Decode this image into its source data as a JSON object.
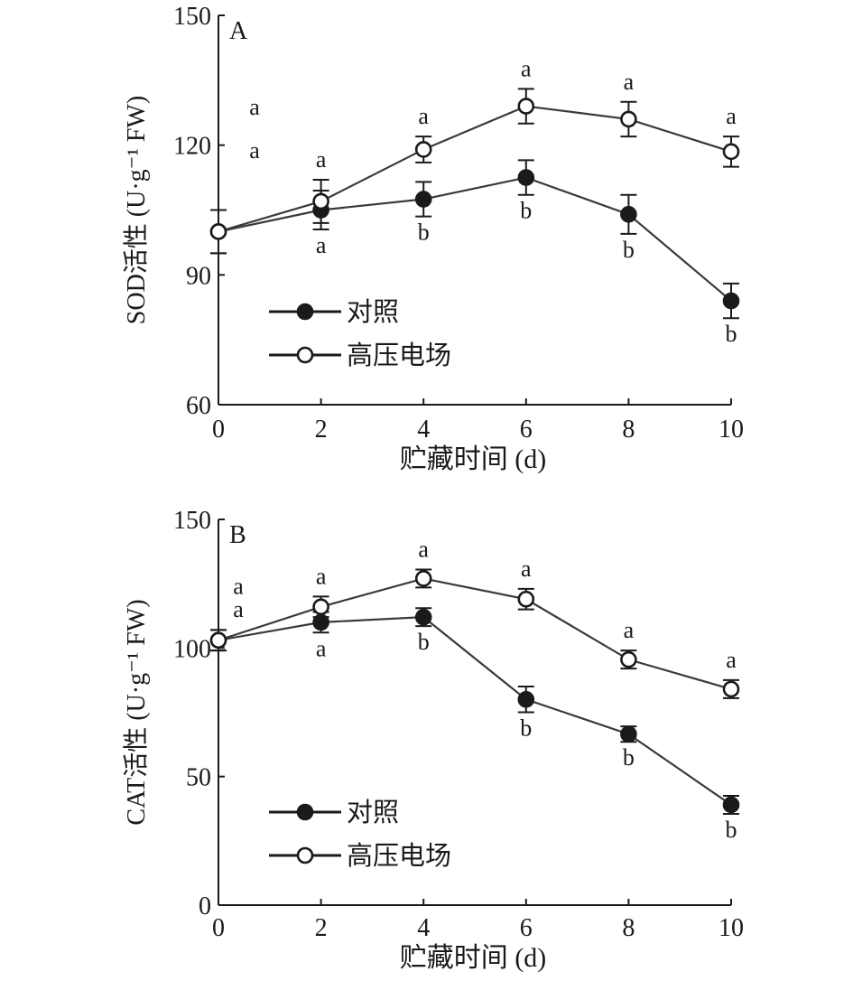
{
  "chart_data": [
    {
      "type": "line",
      "panel_label": "A",
      "ylabel": "SOD活性 (U·g⁻¹ FW)",
      "xlabel": "贮藏时间 (d)",
      "x": [
        0,
        2,
        4,
        6,
        8,
        10
      ],
      "xlim": [
        0,
        10
      ],
      "ylim": [
        60,
        150
      ],
      "yticks": [
        60,
        90,
        120,
        150
      ],
      "xticks": [
        0,
        2,
        4,
        6,
        8,
        10
      ],
      "legend": {
        "placement": "bottom-left"
      },
      "series": [
        {
          "name": "对照",
          "marker": "filled-circle",
          "values": [
            100,
            105,
            107.5,
            112.5,
            104,
            84
          ],
          "errors": [
            5,
            4.5,
            4,
            4,
            4.5,
            4
          ],
          "letters": [
            "a",
            "a",
            "b",
            "b",
            "b",
            "b"
          ],
          "letter_side": "below"
        },
        {
          "name": "高压电场",
          "marker": "open-circle",
          "values": [
            100,
            107,
            119,
            129,
            126,
            118.5
          ],
          "errors": [
            5,
            5,
            3,
            4,
            4,
            3.5
          ],
          "letters": [
            "a",
            "a",
            "a",
            "a",
            "a",
            "a"
          ],
          "letter_side": "above"
        }
      ]
    },
    {
      "type": "line",
      "panel_label": "B",
      "ylabel": "CAT活性 (U·g⁻¹ FW)",
      "xlabel": "贮藏时间 (d)",
      "x": [
        0,
        2,
        4,
        6,
        8,
        10
      ],
      "xlim": [
        0,
        10
      ],
      "ylim": [
        0,
        150
      ],
      "yticks": [
        0,
        50,
        100,
        150
      ],
      "xticks": [
        0,
        2,
        4,
        6,
        8,
        10
      ],
      "legend": {
        "placement": "bottom-left"
      },
      "series": [
        {
          "name": "对照",
          "marker": "filled-circle",
          "values": [
            103,
            110,
            112,
            80,
            66.5,
            39
          ],
          "errors": [
            4,
            4,
            3.5,
            5,
            3,
            3.5
          ],
          "letters": [
            "a",
            "a",
            "b",
            "b",
            "b",
            "b"
          ],
          "letter_side": "below"
        },
        {
          "name": "高压电场",
          "marker": "open-circle",
          "values": [
            103,
            116,
            127,
            119,
            95.5,
            84
          ],
          "errors": [
            4,
            4,
            3.5,
            4,
            3.5,
            3.5
          ],
          "letters": [
            "a",
            "a",
            "a",
            "a",
            "a",
            "a"
          ],
          "letter_side": "above"
        }
      ]
    }
  ]
}
